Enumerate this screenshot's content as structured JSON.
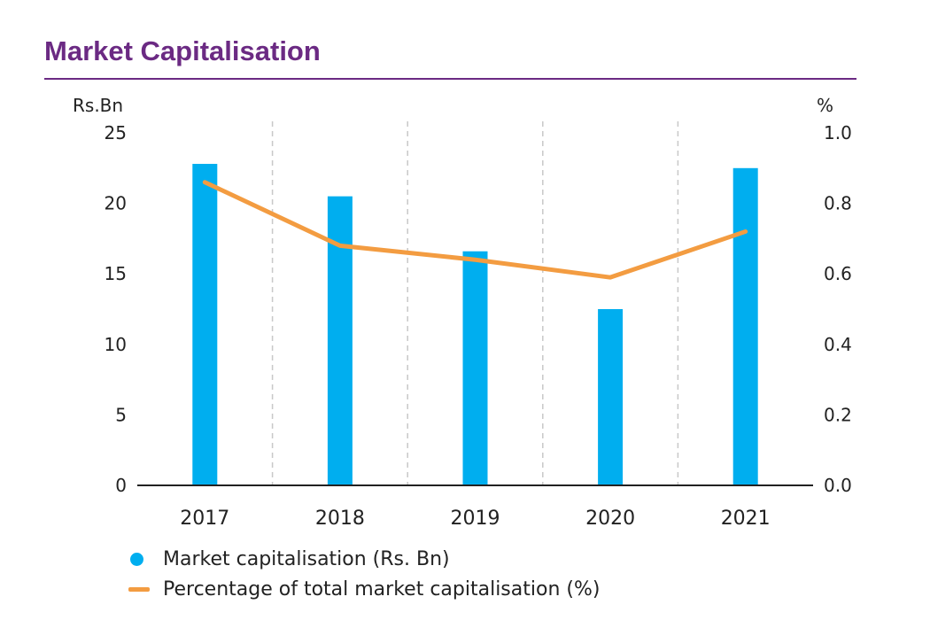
{
  "title": "Market Capitalisation",
  "colors": {
    "title": "#6b2a83",
    "bar": "#00aeef",
    "line": "#f39c41",
    "grid": "#c8c8c8",
    "axis": "#222222"
  },
  "chart_data": {
    "type": "bar",
    "categories": [
      "2017",
      "2018",
      "2019",
      "2020",
      "2021"
    ],
    "series": [
      {
        "name": "Market capitalisation (Rs. Bn)",
        "type": "bar",
        "axis": "left",
        "values": [
          22.8,
          20.5,
          16.6,
          12.5,
          22.5
        ]
      },
      {
        "name": "Percentage of total market capitalisation (%)",
        "type": "line",
        "axis": "right",
        "values": [
          0.86,
          0.68,
          0.64,
          0.59,
          0.72
        ]
      }
    ],
    "left_axis": {
      "label": "Rs.Bn",
      "ylim": [
        0,
        25
      ],
      "ticks": [
        "0",
        "5",
        "10",
        "15",
        "20",
        "25"
      ]
    },
    "right_axis": {
      "label": "%",
      "ylim": [
        0,
        1.0
      ],
      "ticks": [
        "0.0",
        "0.2",
        "0.4",
        "0.6",
        "0.8",
        "1.0"
      ]
    },
    "grid": "vertical dashed between categories",
    "legend_position": "bottom-left"
  }
}
